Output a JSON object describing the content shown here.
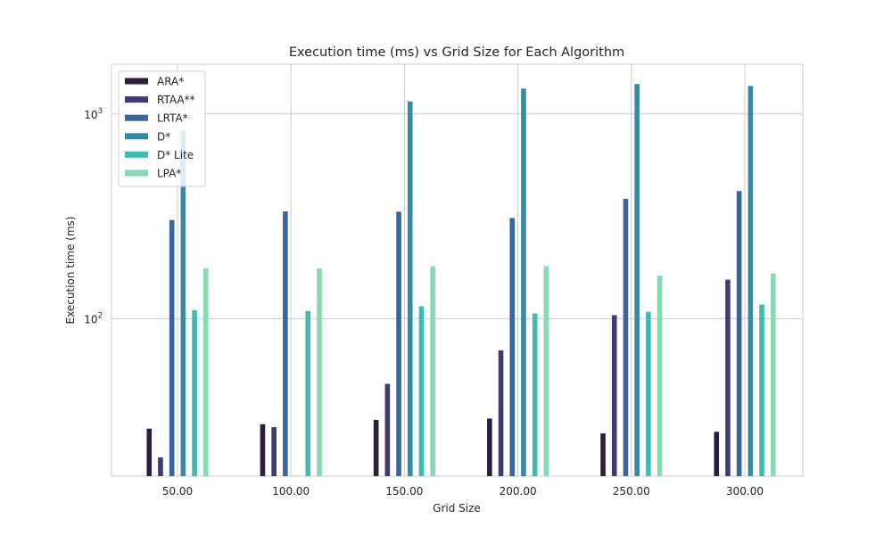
{
  "chart_data": {
    "type": "bar",
    "title": "Execution time (ms) vs Grid Size for Each Algorithm",
    "xlabel": "Grid Size",
    "ylabel": "Execution time (ms)",
    "yscale": "log",
    "ylim": [
      17,
      1750
    ],
    "y_ticks": [
      {
        "value": 100,
        "base": "10",
        "exp": "2"
      },
      {
        "value": 1000,
        "base": "10",
        "exp": "3"
      }
    ],
    "grid": true,
    "legend_position": "top-left",
    "categories": [
      "50.00",
      "100.00",
      "150.00",
      "200.00",
      "250.00",
      "300.00"
    ],
    "series": [
      {
        "name": "ARA*",
        "color": "#2c1e3d",
        "values": [
          29,
          30.5,
          32,
          32.5,
          27.5,
          28
        ]
      },
      {
        "name": "RTAA**",
        "color": "#3f3b72",
        "values": [
          21,
          29.5,
          48,
          70,
          104,
          155
        ]
      },
      {
        "name": "LRTA*",
        "color": "#37659e",
        "values": [
          303,
          334,
          333,
          310,
          385,
          420
        ]
      },
      {
        "name": "D*",
        "color": "#348ba6",
        "values": [
          830,
          null,
          1150,
          1330,
          1400,
          1370
        ]
      },
      {
        "name": "D* Lite",
        "color": "#3fbcaf",
        "values": [
          110,
          109,
          115,
          106,
          108,
          117
        ]
      },
      {
        "name": "LPA*",
        "color": "#84dab2",
        "values": [
          176,
          176,
          180,
          180,
          162,
          166
        ]
      }
    ]
  }
}
